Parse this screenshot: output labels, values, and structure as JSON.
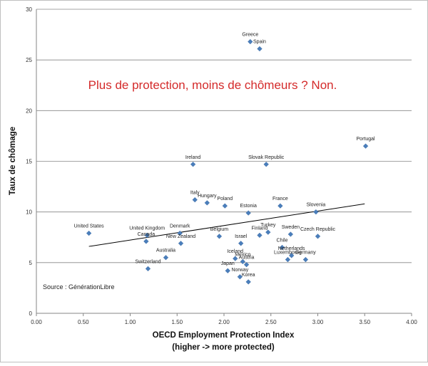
{
  "chart_data": {
    "type": "scatter",
    "annotation": "Plus de protection, moins de chômeurs ? Non.",
    "source": "Source : GénérationLibre",
    "xlabel_line1": "OECD Employment Protection Index",
    "xlabel_line2": "(higher -> more protected)",
    "ylabel": "Taux de chômage",
    "xlim": [
      0,
      4
    ],
    "ylim": [
      0,
      30
    ],
    "x_ticks": [
      "0.00",
      "0.50",
      "1.00",
      "1.50",
      "2.00",
      "2.50",
      "3.00",
      "3.50",
      "4.00"
    ],
    "y_ticks": [
      "0",
      "5",
      "10",
      "15",
      "20",
      "25",
      "30"
    ],
    "grid": "horizontal",
    "marker_color": "#4a7ebb",
    "trendline": {
      "x": [
        0.56,
        3.5
      ],
      "y": [
        6.6,
        10.8
      ]
    },
    "points": [
      {
        "label": "Greece",
        "x": 2.28,
        "y": 26.8
      },
      {
        "label": "Spain",
        "x": 2.38,
        "y": 26.1
      },
      {
        "label": "Portugal",
        "x": 3.51,
        "y": 16.5
      },
      {
        "label": "Ireland",
        "x": 1.67,
        "y": 14.7
      },
      {
        "label": "Slovak Republic",
        "x": 2.45,
        "y": 14.7
      },
      {
        "label": "Italy",
        "x": 1.69,
        "y": 11.2
      },
      {
        "label": "Hungary",
        "x": 1.82,
        "y": 10.9
      },
      {
        "label": "Poland",
        "x": 2.01,
        "y": 10.6
      },
      {
        "label": "France",
        "x": 2.6,
        "y": 10.6
      },
      {
        "label": "Estonia",
        "x": 2.26,
        "y": 9.9
      },
      {
        "label": "Slovenia",
        "x": 2.98,
        "y": 10.0
      },
      {
        "label": "United States",
        "x": 0.56,
        "y": 7.9
      },
      {
        "label": "United Kingdom",
        "x": 1.18,
        "y": 7.7
      },
      {
        "label": "Denmark",
        "x": 1.53,
        "y": 7.9
      },
      {
        "label": "Canada",
        "x": 1.17,
        "y": 7.1
      },
      {
        "label": "New Zealand",
        "x": 1.54,
        "y": 6.9
      },
      {
        "label": "Belgium",
        "x": 1.95,
        "y": 7.6
      },
      {
        "label": "Turkey",
        "x": 2.47,
        "y": 8.0
      },
      {
        "label": "Finland",
        "x": 2.38,
        "y": 7.7
      },
      {
        "label": "Sweden",
        "x": 2.71,
        "y": 7.8
      },
      {
        "label": "Czech Republic",
        "x": 3.0,
        "y": 7.6
      },
      {
        "label": "Israel",
        "x": 2.18,
        "y": 6.9
      },
      {
        "label": "Chile",
        "x": 2.62,
        "y": 6.5
      },
      {
        "label": "Australia",
        "x": 1.38,
        "y": 5.5
      },
      {
        "label": "Iceland",
        "x": 2.12,
        "y": 5.4
      },
      {
        "label": "Mexico",
        "x": 2.2,
        "y": 5.1
      },
      {
        "label": "Netherlands",
        "x": 2.72,
        "y": 5.7
      },
      {
        "label": "Luxembourg",
        "x": 2.68,
        "y": 5.3
      },
      {
        "label": "Germany",
        "x": 2.87,
        "y": 5.3
      },
      {
        "label": "Switzerland",
        "x": 1.19,
        "y": 4.4
      },
      {
        "label": "Austria",
        "x": 2.24,
        "y": 4.8
      },
      {
        "label": "Japan",
        "x": 2.04,
        "y": 4.2
      },
      {
        "label": "Norway",
        "x": 2.17,
        "y": 3.6
      },
      {
        "label": "Korea",
        "x": 2.26,
        "y": 3.1
      }
    ]
  }
}
